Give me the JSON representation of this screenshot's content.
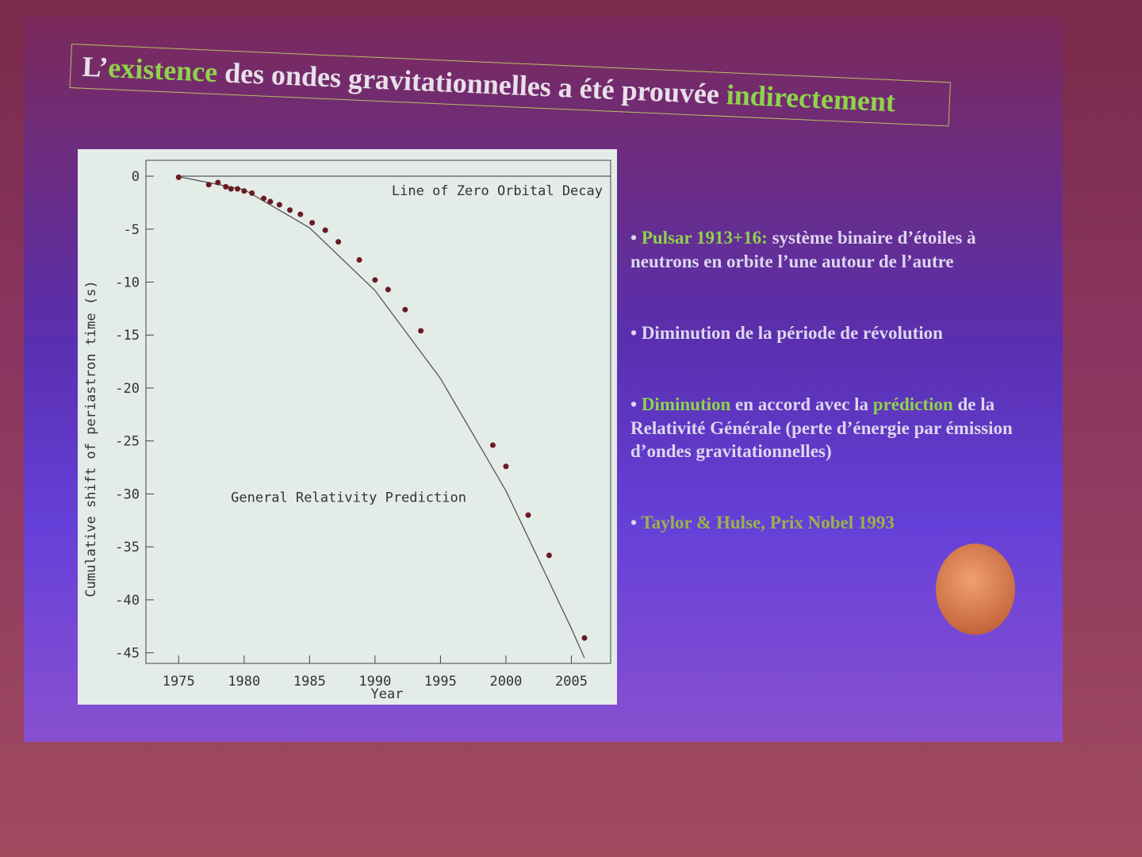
{
  "slide": {
    "title": [
      "L’",
      "existence",
      " des ondes gravitationnelles a été prouvée ",
      "indirectement"
    ],
    "bullets": [
      [
        "Pulsar 1913+16:",
        " système binaire d’étoiles à neutrons en orbite l’une autour de l’autre"
      ],
      [
        "Diminution de la période de révolution"
      ],
      [
        "Diminution",
        " en accord avec la ",
        "prédiction",
        " de la Relativité Générale (perte d’énergie par émission d’ondes gravitationnelles)"
      ],
      [
        "Taylor & Hulse, Prix Nobel 1993"
      ]
    ]
  },
  "chart_data": {
    "type": "scatter",
    "x_label": "Year",
    "y_label": "Cumulative shift of periastron time (s)",
    "xlim": [
      1972.5,
      2008
    ],
    "xticks": [
      1975,
      1980,
      1985,
      1990,
      1995,
      2000,
      2005
    ],
    "ylim": [
      -46,
      1.5
    ],
    "yticks": [
      0,
      -5,
      -10,
      -15,
      -20,
      -25,
      -30,
      -35,
      -40,
      -45
    ],
    "points": {
      "color": "#6b1a22",
      "x": [
        1975.0,
        1977.3,
        1978.0,
        1978.6,
        1979.0,
        1979.5,
        1980.0,
        1980.6,
        1981.5,
        1982.0,
        1982.7,
        1983.5,
        1984.3,
        1985.2,
        1986.2,
        1987.2,
        1988.8,
        1990.0,
        1991.0,
        1992.3,
        1993.5,
        1999.0,
        2000.0,
        2001.7,
        2003.3,
        2006.0
      ],
      "values": [
        -0.1,
        -0.8,
        -0.6,
        -1.0,
        -1.2,
        -1.2,
        -1.4,
        -1.6,
        -2.1,
        -2.4,
        -2.7,
        -3.2,
        -3.6,
        -4.4,
        -5.1,
        -6.2,
        -7.9,
        -9.8,
        -10.7,
        -12.6,
        -14.6,
        -25.4,
        -27.4,
        -32.0,
        -35.8,
        -43.6
      ]
    },
    "lines": [
      {
        "name": "Line of Zero Orbital Decay",
        "color": "#555555",
        "x": [
          1974.8,
          2008
        ],
        "values": [
          0,
          0
        ]
      },
      {
        "name": "General Relativity Prediction",
        "color": "#555555",
        "x": [
          1974.8,
          1980,
          1985,
          1990,
          1995,
          2000,
          2005,
          2006
        ],
        "values": [
          0,
          -1.27,
          -4.87,
          -10.8,
          -19.1,
          -29.7,
          -42.7,
          -45.5
        ]
      }
    ]
  }
}
